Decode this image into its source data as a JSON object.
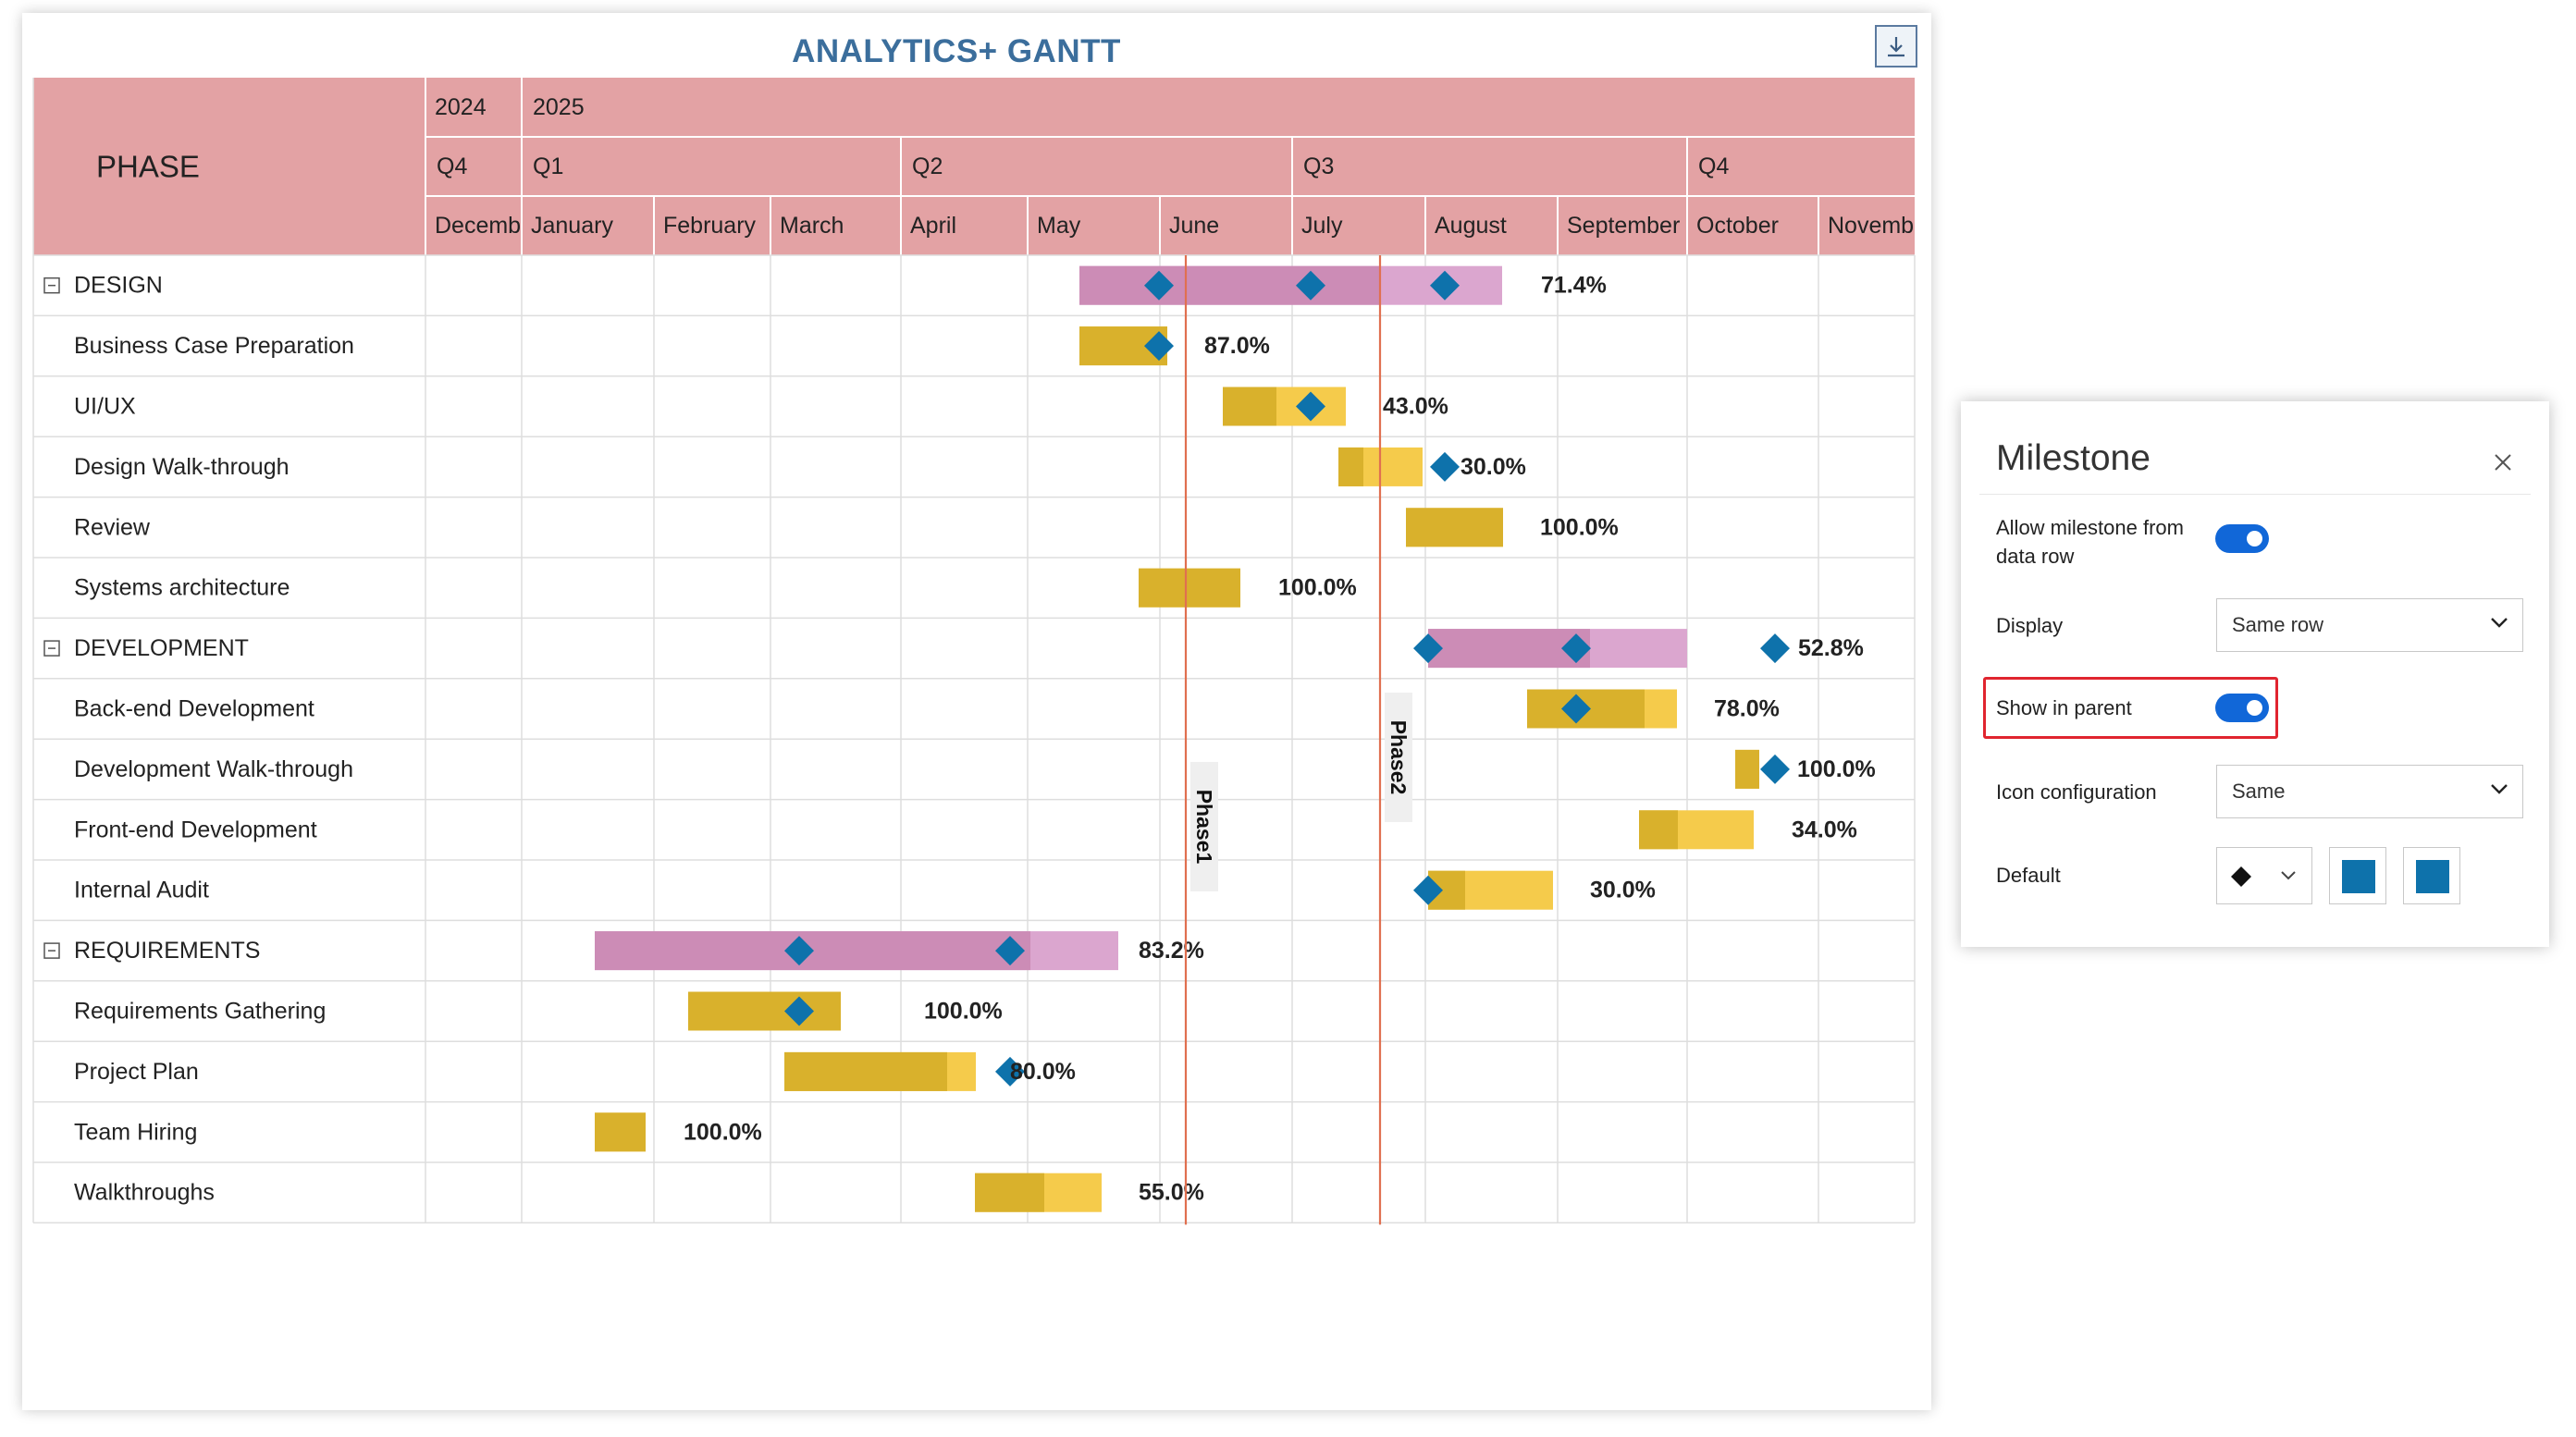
{
  "title": "ANALYTICS+ GANTT",
  "header": {
    "phase_label": "PHASE",
    "years": [
      "2024",
      "2025"
    ],
    "quarters": [
      "Q4",
      "Q1",
      "Q2",
      "Q3",
      "Q4"
    ],
    "months": [
      "Decemb",
      "January",
      "February",
      "March",
      "April",
      "May",
      "June",
      "July",
      "August",
      "September",
      "October",
      "Novemb"
    ]
  },
  "rows": [
    {
      "name": "DESIGN",
      "type": "group",
      "progress": "71.4%"
    },
    {
      "name": "Business Case Preparation",
      "type": "task",
      "progress": "87.0%"
    },
    {
      "name": "UI/UX",
      "type": "task",
      "progress": "43.0%"
    },
    {
      "name": "Design Walk-through",
      "type": "task",
      "progress": "30.0%"
    },
    {
      "name": "Review",
      "type": "task",
      "progress": "100.0%"
    },
    {
      "name": "Systems architecture",
      "type": "task",
      "progress": "100.0%"
    },
    {
      "name": "DEVELOPMENT",
      "type": "group",
      "progress": "52.8%"
    },
    {
      "name": "Back-end Development",
      "type": "task",
      "progress": "78.0%"
    },
    {
      "name": "Development Walk-through",
      "type": "task",
      "progress": "100.0%"
    },
    {
      "name": "Front-end Development",
      "type": "task",
      "progress": "34.0%"
    },
    {
      "name": "Internal Audit",
      "type": "task",
      "progress": "30.0%"
    },
    {
      "name": "REQUIREMENTS",
      "type": "group",
      "progress": "83.2%"
    },
    {
      "name": "Requirements Gathering",
      "type": "task",
      "progress": "100.0%"
    },
    {
      "name": "Project Plan",
      "type": "task",
      "progress": "80.0%"
    },
    {
      "name": "Team Hiring",
      "type": "task",
      "progress": "100.0%"
    },
    {
      "name": "Walkthroughs",
      "type": "task",
      "progress": "55.0%"
    }
  ],
  "reference_lines": [
    "Phase1",
    "Phase2"
  ],
  "colors": {
    "header_bg": "#e3a2a4",
    "group_bar": "#dba6cf",
    "group_bar_done": "#cc8cb6",
    "task_bar": "#f5cb4b",
    "task_bar_done": "#d9b12c",
    "milestone": "#0e72ab",
    "reference_line": "#e07050",
    "toggle_on": "#1167d8",
    "highlight": "#e0252f"
  },
  "icons": {
    "export": "export-icon",
    "collapse": "collapse-minus-icon",
    "milestone": "diamond-icon",
    "close": "close-icon",
    "chevron": "chevron-down-icon"
  },
  "panel": {
    "title": "Milestone",
    "allow_label": "Allow milestone from data row",
    "allow_on": true,
    "display_label": "Display",
    "display_value": "Same row",
    "show_parent_label": "Show in parent",
    "show_parent_on": true,
    "icon_config_label": "Icon configuration",
    "icon_config_value": "Same",
    "default_label": "Default",
    "default_shape": "diamond",
    "default_fill_color": "#0e72ab",
    "default_border_color": "#0e72ab"
  }
}
